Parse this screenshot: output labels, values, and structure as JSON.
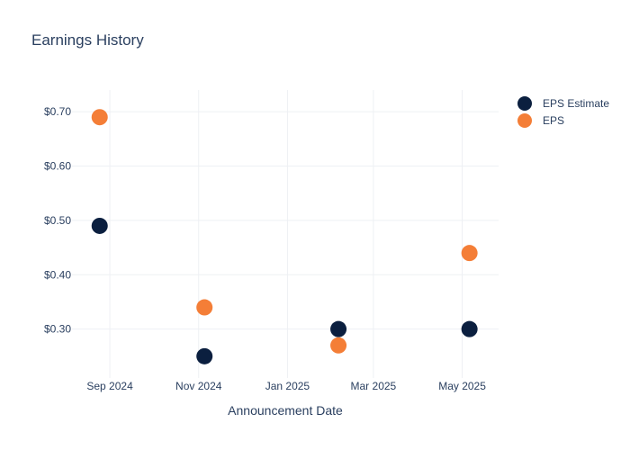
{
  "chart_data": {
    "type": "scatter",
    "title": "Earnings History",
    "xlabel": "Announcement Date",
    "ylabel": "",
    "x_ticks": [
      {
        "date": "2024-09-01",
        "label": "Sep 2024"
      },
      {
        "date": "2024-11-01",
        "label": "Nov 2024"
      },
      {
        "date": "2025-01-01",
        "label": "Jan 2025"
      },
      {
        "date": "2025-03-01",
        "label": "Mar 2025"
      },
      {
        "date": "2025-05-01",
        "label": "May 2025"
      }
    ],
    "xlim": [
      "2024-08-06",
      "2025-05-26"
    ],
    "y_ticks": [
      {
        "value": 0.3,
        "label": "$0.30"
      },
      {
        "value": 0.4,
        "label": "$0.40"
      },
      {
        "value": 0.5,
        "label": "$0.50"
      },
      {
        "value": 0.6,
        "label": "$0.60"
      },
      {
        "value": 0.7,
        "label": "$0.70"
      }
    ],
    "ylim": [
      0.21,
      0.74
    ],
    "grid": true,
    "legend_position": "top-right",
    "series": [
      {
        "name": "EPS Estimate",
        "color": "#0b1f3f",
        "points": [
          {
            "x": "2024-08-25",
            "y": 0.49
          },
          {
            "x": "2024-11-05",
            "y": 0.25
          },
          {
            "x": "2025-02-05",
            "y": 0.3
          },
          {
            "x": "2025-05-06",
            "y": 0.3
          }
        ]
      },
      {
        "name": "EPS",
        "color": "#f47e37",
        "points": [
          {
            "x": "2024-08-25",
            "y": 0.69
          },
          {
            "x": "2024-11-05",
            "y": 0.34
          },
          {
            "x": "2025-02-05",
            "y": 0.27
          },
          {
            "x": "2025-05-06",
            "y": 0.44
          }
        ]
      }
    ]
  }
}
